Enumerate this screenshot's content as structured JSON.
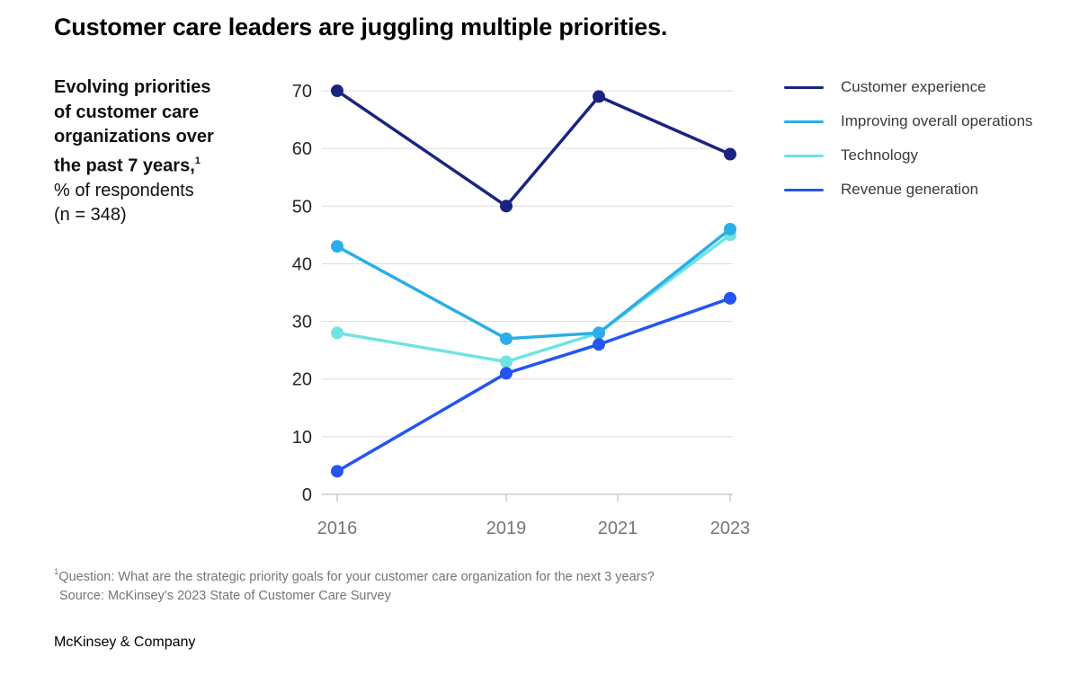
{
  "title": "Customer care leaders are juggling multiple priorities.",
  "subtitle": {
    "bold_lines": [
      "Evolving priorities",
      "of customer care",
      "organizations over",
      "the past 7 years,"
    ],
    "bold_superscript": "1",
    "line_pct": "% of respondents",
    "line_n": "(n = 348)"
  },
  "chart_data": {
    "type": "line",
    "title": "Evolving priorities of customer care organizations over the past 7 years, % of respondents (n = 348)",
    "categories": [
      "2016",
      "2019",
      "2021",
      "2023"
    ],
    "x": [
      2016,
      2019,
      2021,
      2023
    ],
    "series": [
      {
        "name": "Customer experience",
        "color": "#1A2480",
        "values": [
          70,
          50,
          69,
          59
        ]
      },
      {
        "name": "Improving overall operations",
        "color": "#2BAEE8",
        "values": [
          43,
          27,
          28,
          46
        ]
      },
      {
        "name": "Technology",
        "color": "#6FE4E1",
        "values": [
          28,
          23,
          28,
          45
        ]
      },
      {
        "name": "Revenue generation",
        "color": "#2455F0",
        "values": [
          4,
          21,
          26,
          34
        ]
      }
    ],
    "ylim": [
      0,
      70
    ],
    "ytick_interval": 10,
    "xlabel": "",
    "ylabel": "",
    "grid": true,
    "legend_position": "right",
    "colors": {
      "grid_line": "#DCDCDC",
      "axis_line": "#B3B3B3",
      "x_tick_label": "#767676",
      "y_tick_label": "#262626"
    }
  },
  "footnote": {
    "superscript": "1",
    "question": "Question: What are the strategic priority goals for your customer care organization for the next 3 years?",
    "source": "Source: McKinsey’s 2023 State of Customer Care Survey"
  },
  "footer": {
    "brand": "McKinsey & Company"
  }
}
